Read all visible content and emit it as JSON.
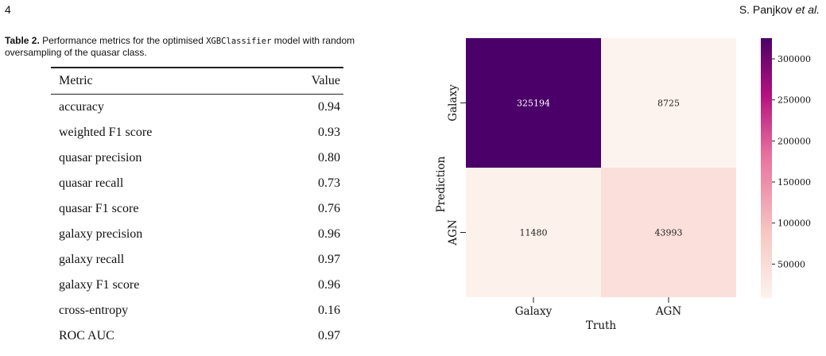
{
  "header": {
    "page_number": "4",
    "author": "S. Panjkov",
    "author_suffix": "et al."
  },
  "table": {
    "caption_label": "Table 2.",
    "caption_pre": " Performance metrics for the optimised ",
    "caption_code": "XGBClassifier",
    "caption_post": " model with random oversampling of the quasar class.",
    "headers": {
      "metric": "Metric",
      "value": "Value"
    },
    "rows": [
      {
        "metric": "accuracy",
        "value": "0.94"
      },
      {
        "metric": "weighted F1 score",
        "value": "0.93"
      },
      {
        "metric": "quasar precision",
        "value": "0.80"
      },
      {
        "metric": "quasar recall",
        "value": "0.73"
      },
      {
        "metric": "quasar F1 score",
        "value": "0.76"
      },
      {
        "metric": "galaxy precision",
        "value": "0.96"
      },
      {
        "metric": "galaxy recall",
        "value": "0.97"
      },
      {
        "metric": "galaxy F1 score",
        "value": "0.96"
      },
      {
        "metric": "cross-entropy",
        "value": "0.16"
      },
      {
        "metric": "ROC AUC",
        "value": "0.97"
      }
    ]
  },
  "chart_data": {
    "type": "heatmap",
    "xlabel": "Truth",
    "ylabel": "Prediction",
    "x_categories": [
      "Galaxy",
      "AGN"
    ],
    "y_categories": [
      "Galaxy",
      "AGN"
    ],
    "values": [
      [
        325194,
        8725
      ],
      [
        11480,
        43993
      ]
    ],
    "colorbar": {
      "min": 8725,
      "max": 325194,
      "ticks": [
        50000,
        100000,
        150000,
        200000,
        250000,
        300000
      ]
    },
    "colors": {
      "low": "#fdf3ee",
      "mid1": "#f6c7c2",
      "mid2": "#d8459a",
      "high": "#4a0068"
    }
  }
}
